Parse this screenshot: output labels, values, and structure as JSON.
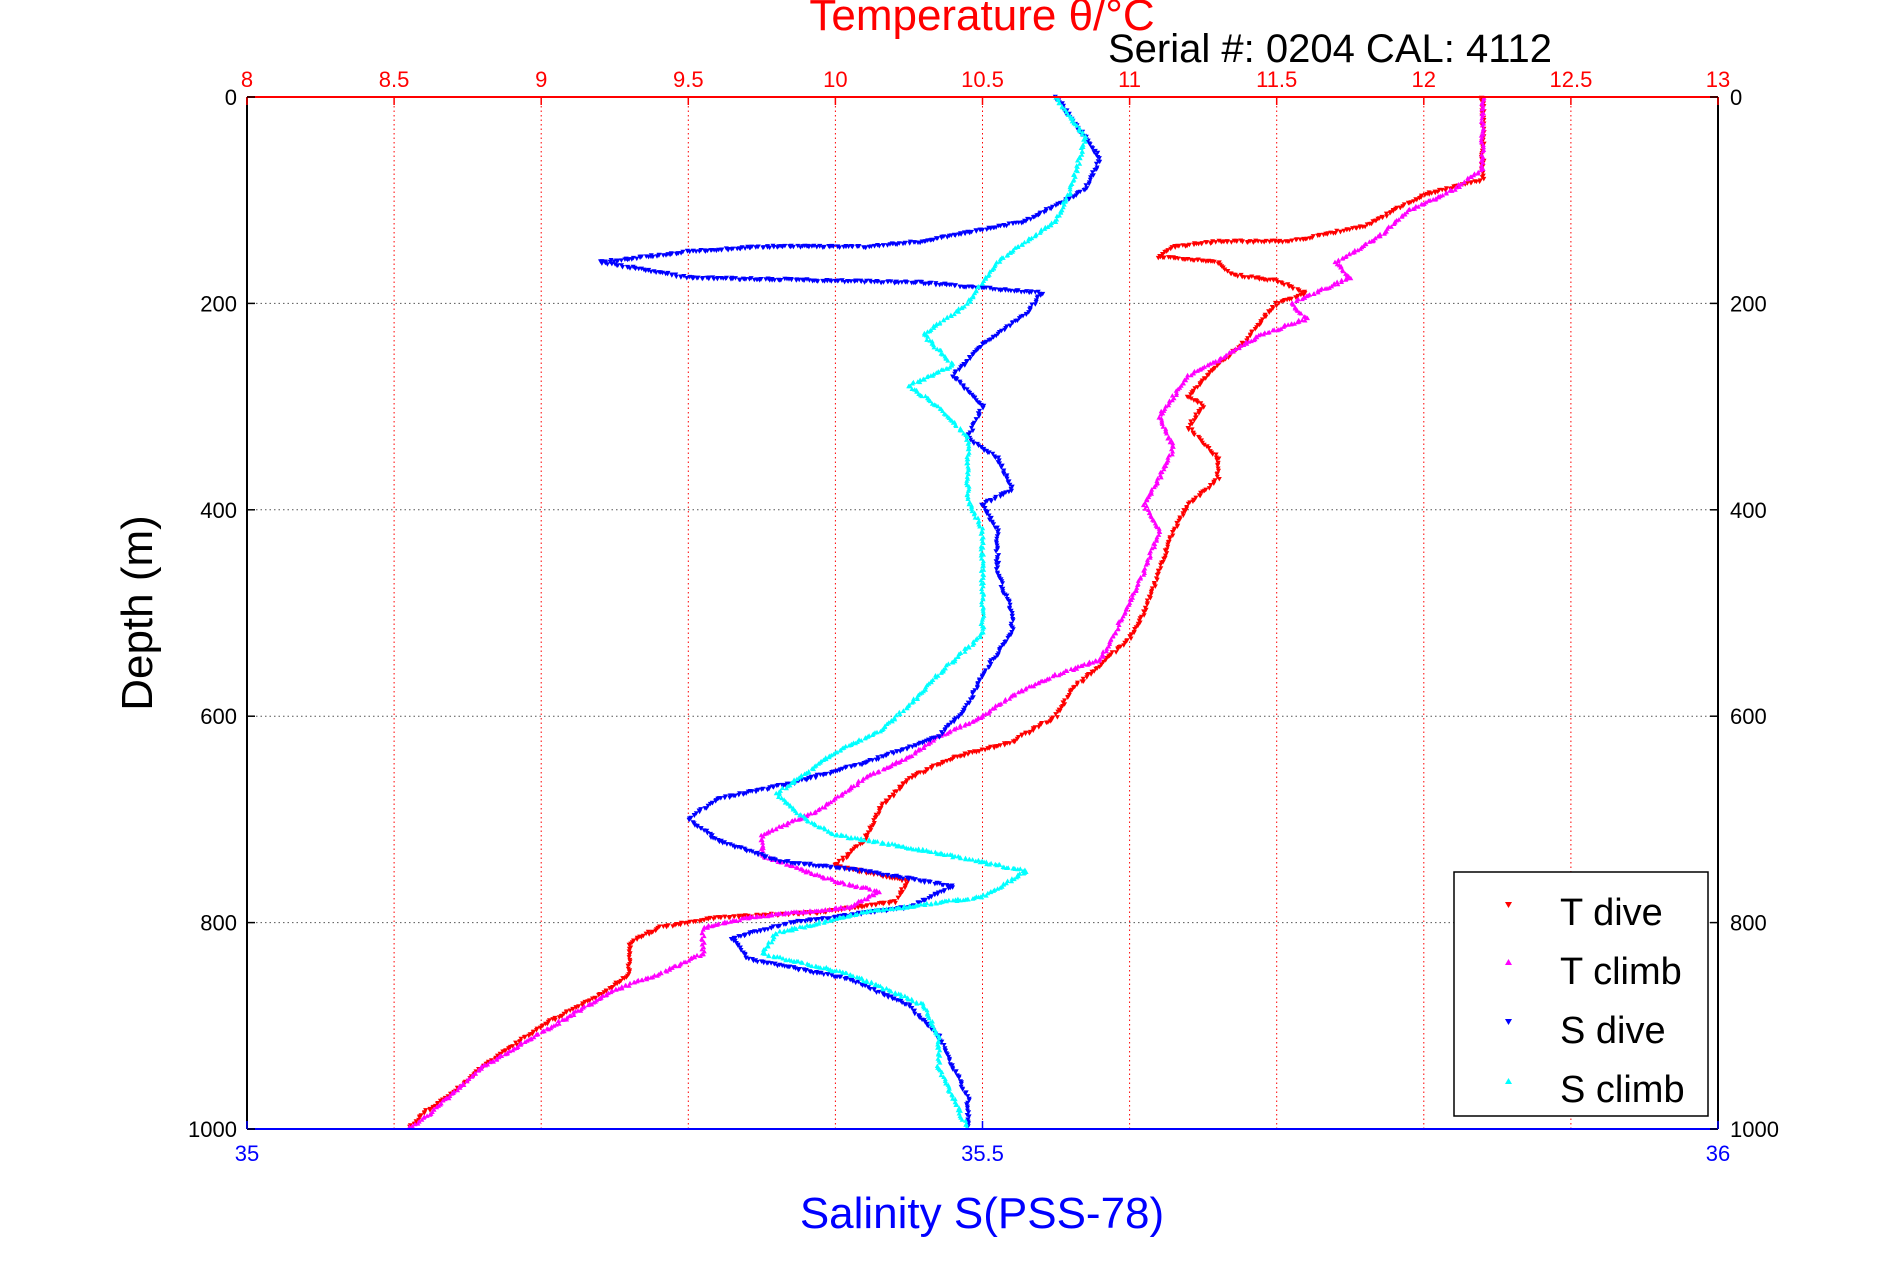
{
  "chart_data": {
    "type": "scatter",
    "title": "Temperature θ/°C",
    "subtitle": "Serial #: 0204  CAL: 4112",
    "ylabel": "Depth (m)",
    "xlabel_bottom": "Salinity S(PSS-78)",
    "x_top": {
      "label": "Temperature θ/°C",
      "range": [
        8,
        13
      ],
      "ticks": [
        "8",
        "8.5",
        "9",
        "9.5",
        "10",
        "10.5",
        "11",
        "11.5",
        "12",
        "12.5",
        "13"
      ],
      "color": "#ff0000"
    },
    "x_bottom": {
      "label": "Salinity S(PSS-78)",
      "range": [
        35,
        36
      ],
      "ticks": [
        "35",
        "35.5",
        "36"
      ],
      "color": "#0000ff"
    },
    "y": {
      "range": [
        0,
        1000
      ],
      "reversed": true,
      "ticks": [
        "0",
        "200",
        "400",
        "600",
        "800",
        "1000"
      ]
    },
    "grid": true,
    "legend_position": "bottom-right",
    "series": [
      {
        "name": "T dive",
        "axis": "temperature",
        "color": "#ff0000",
        "points": [
          [
            12.2,
            0
          ],
          [
            12.2,
            60
          ],
          [
            12.2,
            80
          ],
          [
            12.0,
            95
          ],
          [
            11.9,
            110
          ],
          [
            11.8,
            125
          ],
          [
            11.55,
            140
          ],
          [
            11.3,
            140
          ],
          [
            11.15,
            145
          ],
          [
            11.1,
            155
          ],
          [
            11.3,
            160
          ],
          [
            11.35,
            172
          ],
          [
            11.5,
            178
          ],
          [
            11.6,
            190
          ],
          [
            11.5,
            200
          ],
          [
            11.45,
            215
          ],
          [
            11.4,
            235
          ],
          [
            11.3,
            260
          ],
          [
            11.2,
            290
          ],
          [
            11.25,
            300
          ],
          [
            11.2,
            320
          ],
          [
            11.3,
            350
          ],
          [
            11.3,
            370
          ],
          [
            11.2,
            395
          ],
          [
            11.15,
            420
          ],
          [
            11.1,
            460
          ],
          [
            11.05,
            500
          ],
          [
            11.0,
            525
          ],
          [
            10.9,
            550
          ],
          [
            10.8,
            575
          ],
          [
            10.75,
            600
          ],
          [
            10.6,
            625
          ],
          [
            10.4,
            640
          ],
          [
            10.25,
            660
          ],
          [
            10.15,
            690
          ],
          [
            10.1,
            720
          ],
          [
            10.0,
            745
          ],
          [
            10.25,
            760
          ],
          [
            10.2,
            780
          ],
          [
            9.95,
            790
          ],
          [
            9.6,
            795
          ],
          [
            9.4,
            805
          ],
          [
            9.3,
            820
          ],
          [
            9.3,
            850
          ],
          [
            9.2,
            870
          ],
          [
            9.0,
            900
          ],
          [
            8.9,
            920
          ],
          [
            8.8,
            940
          ],
          [
            8.7,
            965
          ],
          [
            8.6,
            985
          ],
          [
            8.55,
            1000
          ]
        ]
      },
      {
        "name": "T climb",
        "axis": "temperature",
        "color": "#ff00ff",
        "points": [
          [
            12.2,
            0
          ],
          [
            12.2,
            70
          ],
          [
            12.1,
            90
          ],
          [
            11.95,
            110
          ],
          [
            11.85,
            135
          ],
          [
            11.7,
            160
          ],
          [
            11.75,
            175
          ],
          [
            11.55,
            200
          ],
          [
            11.6,
            215
          ],
          [
            11.45,
            230
          ],
          [
            11.3,
            255
          ],
          [
            11.2,
            270
          ],
          [
            11.15,
            290
          ],
          [
            11.1,
            310
          ],
          [
            11.15,
            340
          ],
          [
            11.1,
            370
          ],
          [
            11.05,
            395
          ],
          [
            11.1,
            420
          ],
          [
            11.05,
            460
          ],
          [
            11.0,
            490
          ],
          [
            10.95,
            520
          ],
          [
            10.9,
            545
          ],
          [
            10.75,
            560
          ],
          [
            10.6,
            580
          ],
          [
            10.5,
            600
          ],
          [
            10.35,
            620
          ],
          [
            10.25,
            640
          ],
          [
            10.1,
            660
          ],
          [
            9.95,
            690
          ],
          [
            9.75,
            715
          ],
          [
            9.75,
            735
          ],
          [
            9.85,
            745
          ],
          [
            10.0,
            760
          ],
          [
            10.15,
            770
          ],
          [
            10.05,
            785
          ],
          [
            9.7,
            795
          ],
          [
            9.55,
            805
          ],
          [
            9.55,
            830
          ],
          [
            9.4,
            850
          ],
          [
            9.25,
            865
          ],
          [
            9.1,
            890
          ],
          [
            8.95,
            915
          ],
          [
            8.8,
            940
          ],
          [
            8.7,
            965
          ],
          [
            8.6,
            990
          ],
          [
            8.55,
            1000
          ]
        ]
      },
      {
        "name": "S dive",
        "axis": "salinity",
        "color": "#0000ff",
        "points": [
          [
            35.55,
            0
          ],
          [
            35.58,
            60
          ],
          [
            35.57,
            90
          ],
          [
            35.53,
            120
          ],
          [
            35.46,
            140
          ],
          [
            35.42,
            145
          ],
          [
            35.35,
            145
          ],
          [
            35.3,
            150
          ],
          [
            35.24,
            160
          ],
          [
            35.3,
            175
          ],
          [
            35.46,
            180
          ],
          [
            35.54,
            190
          ],
          [
            35.53,
            210
          ],
          [
            35.5,
            240
          ],
          [
            35.48,
            270
          ],
          [
            35.5,
            300
          ],
          [
            35.49,
            330
          ],
          [
            35.51,
            350
          ],
          [
            35.52,
            380
          ],
          [
            35.5,
            395
          ],
          [
            35.51,
            420
          ],
          [
            35.51,
            460
          ],
          [
            35.52,
            500
          ],
          [
            35.52,
            520
          ],
          [
            35.5,
            560
          ],
          [
            35.49,
            590
          ],
          [
            35.47,
            620
          ],
          [
            35.42,
            645
          ],
          [
            35.37,
            665
          ],
          [
            35.32,
            680
          ],
          [
            35.3,
            700
          ],
          [
            35.32,
            720
          ],
          [
            35.36,
            740
          ],
          [
            35.42,
            750
          ],
          [
            35.48,
            765
          ],
          [
            35.45,
            785
          ],
          [
            35.37,
            800
          ],
          [
            35.33,
            815
          ],
          [
            35.34,
            835
          ],
          [
            35.41,
            855
          ],
          [
            35.45,
            880
          ],
          [
            35.47,
            910
          ],
          [
            35.48,
            940
          ],
          [
            35.49,
            970
          ],
          [
            35.49,
            1000
          ]
        ]
      },
      {
        "name": "S climb",
        "axis": "salinity",
        "color": "#00ffff",
        "points": [
          [
            35.55,
            0
          ],
          [
            35.57,
            40
          ],
          [
            35.56,
            90
          ],
          [
            35.55,
            120
          ],
          [
            35.53,
            140
          ],
          [
            35.51,
            160
          ],
          [
            35.5,
            180
          ],
          [
            35.49,
            200
          ],
          [
            35.46,
            230
          ],
          [
            35.48,
            260
          ],
          [
            35.45,
            280
          ],
          [
            35.47,
            300
          ],
          [
            35.49,
            330
          ],
          [
            35.49,
            360
          ],
          [
            35.49,
            390
          ],
          [
            35.5,
            420
          ],
          [
            35.5,
            460
          ],
          [
            35.5,
            500
          ],
          [
            35.5,
            520
          ],
          [
            35.47,
            560
          ],
          [
            35.45,
            590
          ],
          [
            35.43,
            615
          ],
          [
            35.4,
            635
          ],
          [
            35.38,
            655
          ],
          [
            35.36,
            675
          ],
          [
            35.38,
            700
          ],
          [
            35.4,
            715
          ],
          [
            35.46,
            730
          ],
          [
            35.53,
            750
          ],
          [
            35.5,
            775
          ],
          [
            35.42,
            790
          ],
          [
            35.36,
            810
          ],
          [
            35.35,
            830
          ],
          [
            35.41,
            850
          ],
          [
            35.46,
            880
          ],
          [
            35.47,
            910
          ],
          [
            35.47,
            940
          ],
          [
            35.48,
            970
          ],
          [
            35.49,
            1000
          ]
        ]
      }
    ]
  },
  "legend": {
    "items": [
      {
        "label": "T dive",
        "color": "#ff0000"
      },
      {
        "label": "T climb",
        "color": "#ff00ff"
      },
      {
        "label": "S dive",
        "color": "#0000ff"
      },
      {
        "label": "S climb",
        "color": "#00ffff"
      }
    ]
  }
}
